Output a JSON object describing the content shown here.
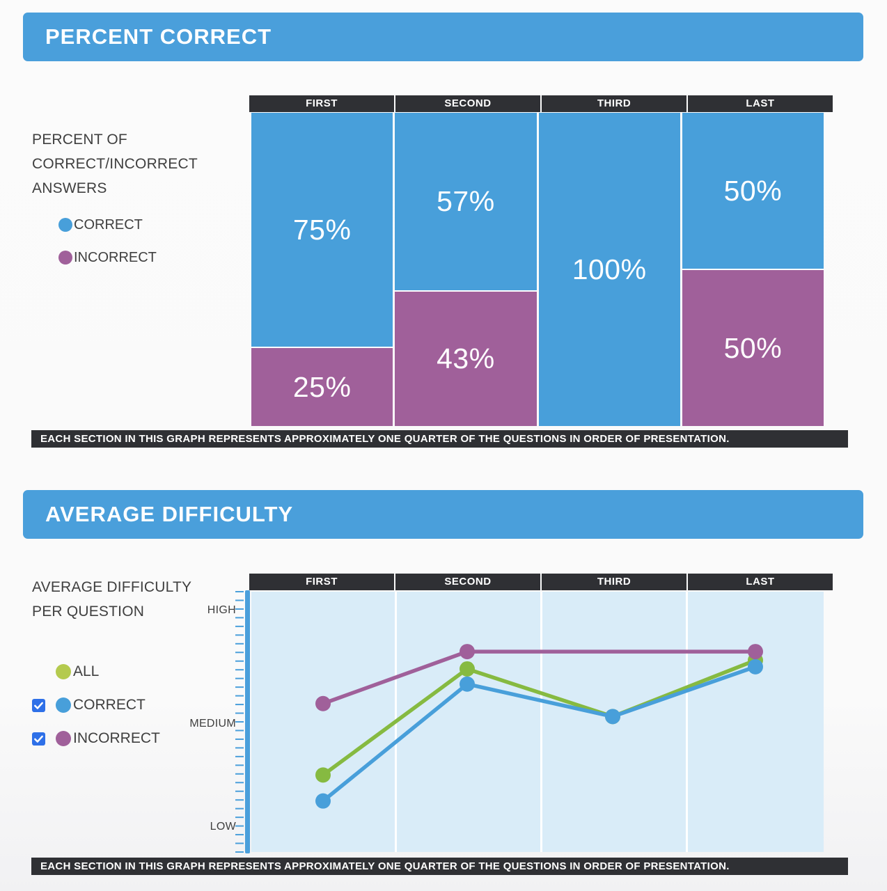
{
  "percent_correct": {
    "title": "PERCENT CORRECT",
    "legend_title": "PERCENT OF CORRECT/INCORRECT ANSWERS",
    "footnote": "EACH SECTION IN THIS GRAPH REPRESENTS APPROXIMATELY ONE QUARTER OF THE QUESTIONS IN ORDER OF PRESENTATION."
  },
  "average_difficulty": {
    "title": "AVERAGE DIFFICULTY",
    "legend_title": "AVERAGE DIFFICULTY PER QUESTION",
    "footnote": "EACH SECTION IN THIS GRAPH REPRESENTS APPROXIMATELY ONE QUARTER OF THE QUESTIONS IN ORDER OF PRESENTATION."
  },
  "colors": {
    "banner_blue": "#4a9fdb",
    "correct_blue": "#489fda",
    "incorrect_purple": "#a0609a",
    "all_green_line": "#86ba41",
    "all_green_legend": "#b4ca4e",
    "header_dark": "#2f3034",
    "plot_background": "#d9ecf8",
    "checkbox_blue": "#2e70e8",
    "text_dark": "#3f3f3f"
  },
  "chart_data": [
    {
      "type": "bar",
      "stacked": true,
      "title": "PERCENT OF CORRECT/INCORRECT ANSWERS",
      "categories": [
        "FIRST",
        "SECOND",
        "THIRD",
        "LAST"
      ],
      "series": [
        {
          "name": "CORRECT",
          "color": "#489fda",
          "values": [
            75,
            57,
            100,
            50
          ]
        },
        {
          "name": "INCORRECT",
          "color": "#a0609a",
          "values": [
            25,
            43,
            0,
            50
          ]
        }
      ],
      "value_labels": [
        [
          "75%",
          "25%"
        ],
        [
          "57%",
          "43%"
        ],
        [
          "100%"
        ],
        [
          "50%",
          "50%"
        ]
      ],
      "ylim": [
        0,
        100
      ],
      "legend_position": "left",
      "footnote": "EACH SECTION IN THIS GRAPH REPRESENTS APPROXIMATELY ONE QUARTER OF THE QUESTIONS IN ORDER OF PRESENTATION."
    },
    {
      "type": "line",
      "title": "AVERAGE DIFFICULTY PER QUESTION",
      "categories": [
        "FIRST",
        "SECOND",
        "THIRD",
        "LAST"
      ],
      "y_axis": {
        "ticks": [
          "HIGH",
          "MEDIUM",
          "LOW"
        ],
        "tick_values": {
          "HIGH": 1,
          "MEDIUM": 0.5,
          "LOW": 0
        },
        "range": [
          0,
          1
        ]
      },
      "series": [
        {
          "name": "ALL",
          "color": "#86ba41",
          "legend_color": "#b4ca4e",
          "has_checkbox": false,
          "checked": null,
          "x": [
            "FIRST",
            "SECOND",
            "THIRD",
            "LAST"
          ],
          "values": [
            0.24,
            0.73,
            0.51,
            0.77
          ]
        },
        {
          "name": "CORRECT",
          "color": "#489fda",
          "legend_color": "#489fda",
          "has_checkbox": true,
          "checked": true,
          "x": [
            "FIRST",
            "SECOND",
            "THIRD",
            "LAST"
          ],
          "values": [
            0.12,
            0.66,
            0.51,
            0.74
          ]
        },
        {
          "name": "INCORRECT",
          "color": "#a0609a",
          "legend_color": "#a0609a",
          "has_checkbox": true,
          "checked": true,
          "x": [
            "FIRST",
            "SECOND",
            "LAST"
          ],
          "values": [
            0.57,
            0.81,
            0.81
          ]
        }
      ],
      "grid": false,
      "legend_position": "left",
      "footnote": "EACH SECTION IN THIS GRAPH REPRESENTS APPROXIMATELY ONE QUARTER OF THE QUESTIONS IN ORDER OF PRESENTATION."
    }
  ]
}
